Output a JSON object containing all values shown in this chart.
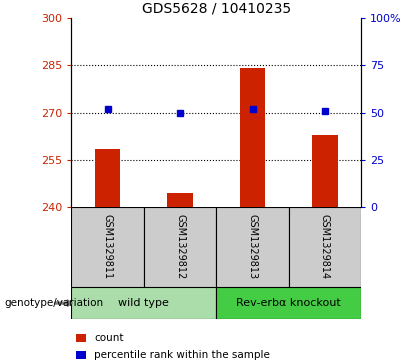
{
  "title": "GDS5628 / 10410235",
  "samples": [
    "GSM1329811",
    "GSM1329812",
    "GSM1329813",
    "GSM1329814"
  ],
  "bar_values": [
    258.5,
    244.5,
    284.0,
    263.0
  ],
  "bar_bottom": 240,
  "percentile_values": [
    52,
    50,
    52,
    51
  ],
  "bar_color": "#cc2200",
  "percentile_color": "#0000cc",
  "left_ylim": [
    240,
    300
  ],
  "left_yticks": [
    240,
    255,
    270,
    285,
    300
  ],
  "right_ylim": [
    0,
    100
  ],
  "right_yticks": [
    0,
    25,
    50,
    75,
    100
  ],
  "right_yticklabels": [
    "0",
    "25",
    "50",
    "75",
    "100%"
  ],
  "left_tick_color": "#cc2200",
  "right_tick_color": "#0000cc",
  "groups": [
    {
      "label": "wild type",
      "samples": [
        0,
        1
      ],
      "color": "#aaddaa"
    },
    {
      "label": "Rev-erbα knockout",
      "samples": [
        2,
        3
      ],
      "color": "#44cc44"
    }
  ],
  "genotype_label": "genotype/variation",
  "legend_items": [
    {
      "color": "#cc2200",
      "label": "count"
    },
    {
      "color": "#0000cc",
      "label": "percentile rank within the sample"
    }
  ],
  "sample_box_color": "#cccccc",
  "bar_width": 0.35,
  "title_fontsize": 10,
  "tick_fontsize": 8,
  "label_fontsize": 8
}
